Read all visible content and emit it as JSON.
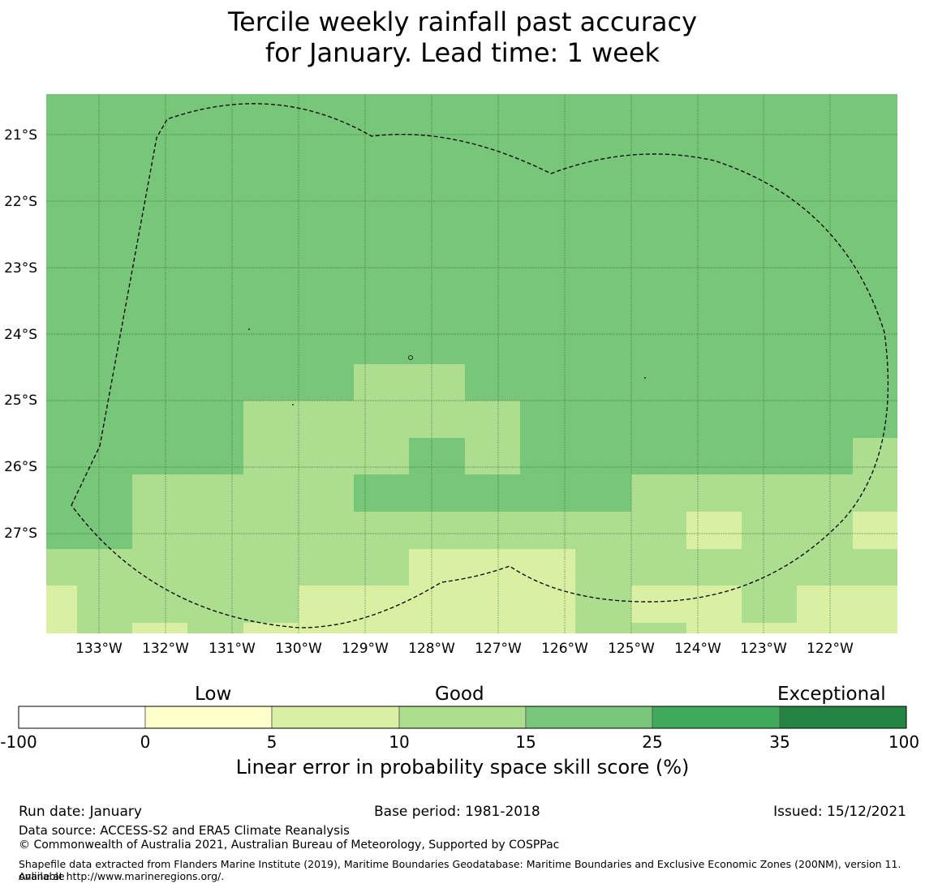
{
  "title": {
    "line1": "Tercile weekly rainfall past accuracy",
    "line2": "for January. Lead time: 1 week"
  },
  "map": {
    "lat_labels": [
      "21°S",
      "22°S",
      "23°S",
      "24°S",
      "25°S",
      "26°S",
      "27°S"
    ],
    "lon_labels": [
      "133°W",
      "132°W",
      "131°W",
      "130°W",
      "129°W",
      "128°W",
      "127°W",
      "126°W",
      "125°W",
      "124°W",
      "123°W",
      "122°W"
    ],
    "colors": {
      "5-10": "#d9f0a3",
      "10-15": "#addd8e",
      "15-25": "#78c679"
    }
  },
  "colorbar": {
    "category_labels": {
      "low": "Low",
      "good": "Good",
      "exceptional": "Exceptional"
    },
    "ticks": [
      "-100",
      "0",
      "5",
      "10",
      "15",
      "25",
      "35",
      "100"
    ],
    "colors": [
      "#ffffff",
      "#ffffcc",
      "#d9f0a3",
      "#addd8e",
      "#78c679",
      "#41ab5d",
      "#238443"
    ],
    "title": "Linear error in probability space skill score (%)"
  },
  "footer": {
    "run_date": "Run date: January",
    "base_period": "Base period: 1981-2018",
    "issued": "Issued: 15/12/2021",
    "data_source": "Data source: ACCESS-S2 and ERA5 Climate Reanalysis",
    "copyright": "© Commonwealth of Australia 2021, Australian Bureau of Meteorology, Supported by COSPPac",
    "shapefile_line1": "Shapefile data extracted from Flanders Marine Institute (2019), Maritime Boundaries Geodatabase: Maritime Boundaries and Exclusive Economic Zones (200NM), version 11. Available",
    "shapefile_line2": "online at http://www.marineregions.org/."
  }
}
